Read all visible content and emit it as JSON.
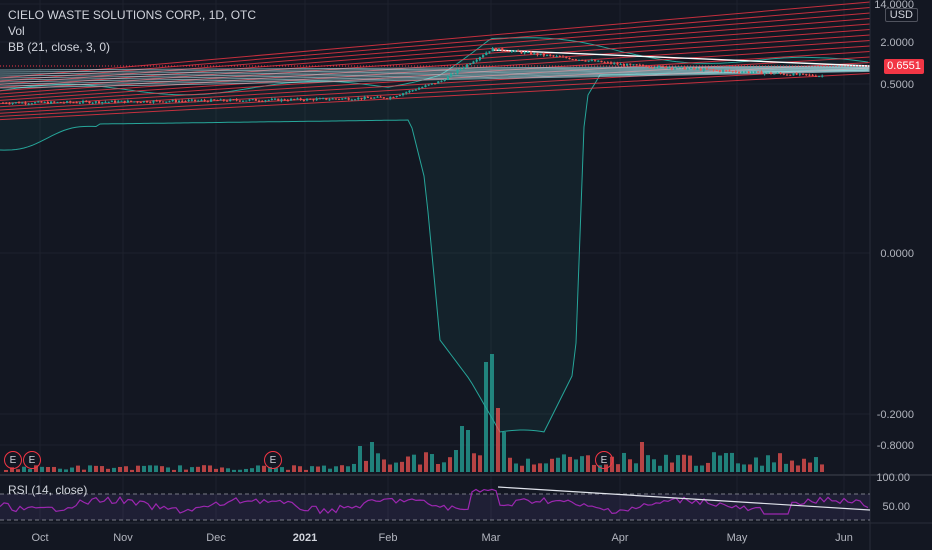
{
  "header": {
    "symbol": "CIELO WASTE SOLUTIONS CORP., 1D, OTC",
    "vol_label": "Vol",
    "bb_label": "BB (21, close, 3, 0)",
    "rsi_label": "RSI (14, close)",
    "currency": "USD",
    "last_price": "0.6551"
  },
  "chart_data": [
    {
      "type": "candlestick",
      "title": "CIELO WASTE SOLUTIONS CORP., 1D, OTC",
      "y_scale": "symmetric-log",
      "y_ticks": [
        "14.0000",
        "2.0000",
        "0.5000",
        "0.0000",
        "-0.2000",
        "-0.8000"
      ],
      "x_ticks": [
        "Oct",
        "Nov",
        "Dec",
        "2021",
        "Feb",
        "Mar",
        "Apr",
        "May",
        "Jun"
      ],
      "last_price": 0.6551,
      "close_approx": [
        {
          "date": "Oct",
          "value": 0.27
        },
        {
          "date": "Nov",
          "value": 0.28
        },
        {
          "date": "Dec",
          "value": 0.29
        },
        {
          "date": "2021",
          "value": 0.3
        },
        {
          "date": "Feb",
          "value": 0.32
        },
        {
          "date": "mid-Feb",
          "value": 0.55
        },
        {
          "date": "Mar",
          "value": 1.6
        },
        {
          "date": "Apr",
          "value": 0.95
        },
        {
          "date": "May",
          "value": 0.75
        },
        {
          "date": "late-May",
          "value": 0.6551
        }
      ],
      "indicators": [
        "Vol",
        "BB (21, close, 3, 0)"
      ],
      "colors": {
        "up": "#26a69a",
        "down": "#ef5350",
        "bb": "#26a69a",
        "fan": "#f23645"
      }
    },
    {
      "type": "line",
      "title": "RSI (14, close)",
      "y_ticks": [
        "100.00",
        "50.00"
      ],
      "levels": [
        70,
        30
      ],
      "color": "#9c27b0"
    }
  ],
  "earnings_markers": [
    "E",
    "E",
    "E",
    "E"
  ]
}
